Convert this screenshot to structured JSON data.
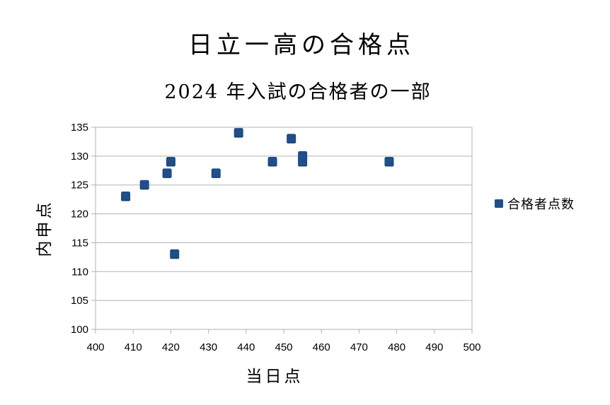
{
  "chart_data": {
    "type": "scatter",
    "title": "日立一高の合格点",
    "subtitle": "2024 年入試の合格者の一部",
    "xlabel": "当日点",
    "ylabel": "内申点",
    "xlim": [
      400,
      500
    ],
    "ylim": [
      100,
      135
    ],
    "x_ticks": [
      "400",
      "410",
      "420",
      "430",
      "440",
      "450",
      "460",
      "470",
      "480",
      "490",
      "500"
    ],
    "y_ticks": [
      "100",
      "105",
      "110",
      "115",
      "120",
      "125",
      "130",
      "135"
    ],
    "grid": true,
    "legend_position": "right",
    "marker_color": "#1f4e8a",
    "series": [
      {
        "name": "合格者点数",
        "points": [
          {
            "x": 408,
            "y": 123
          },
          {
            "x": 413,
            "y": 125
          },
          {
            "x": 419,
            "y": 127
          },
          {
            "x": 420,
            "y": 129
          },
          {
            "x": 421,
            "y": 113
          },
          {
            "x": 432,
            "y": 127
          },
          {
            "x": 438,
            "y": 134
          },
          {
            "x": 447,
            "y": 129
          },
          {
            "x": 452,
            "y": 133
          },
          {
            "x": 455,
            "y": 130
          },
          {
            "x": 455,
            "y": 129
          },
          {
            "x": 478,
            "y": 129
          }
        ]
      }
    ]
  }
}
